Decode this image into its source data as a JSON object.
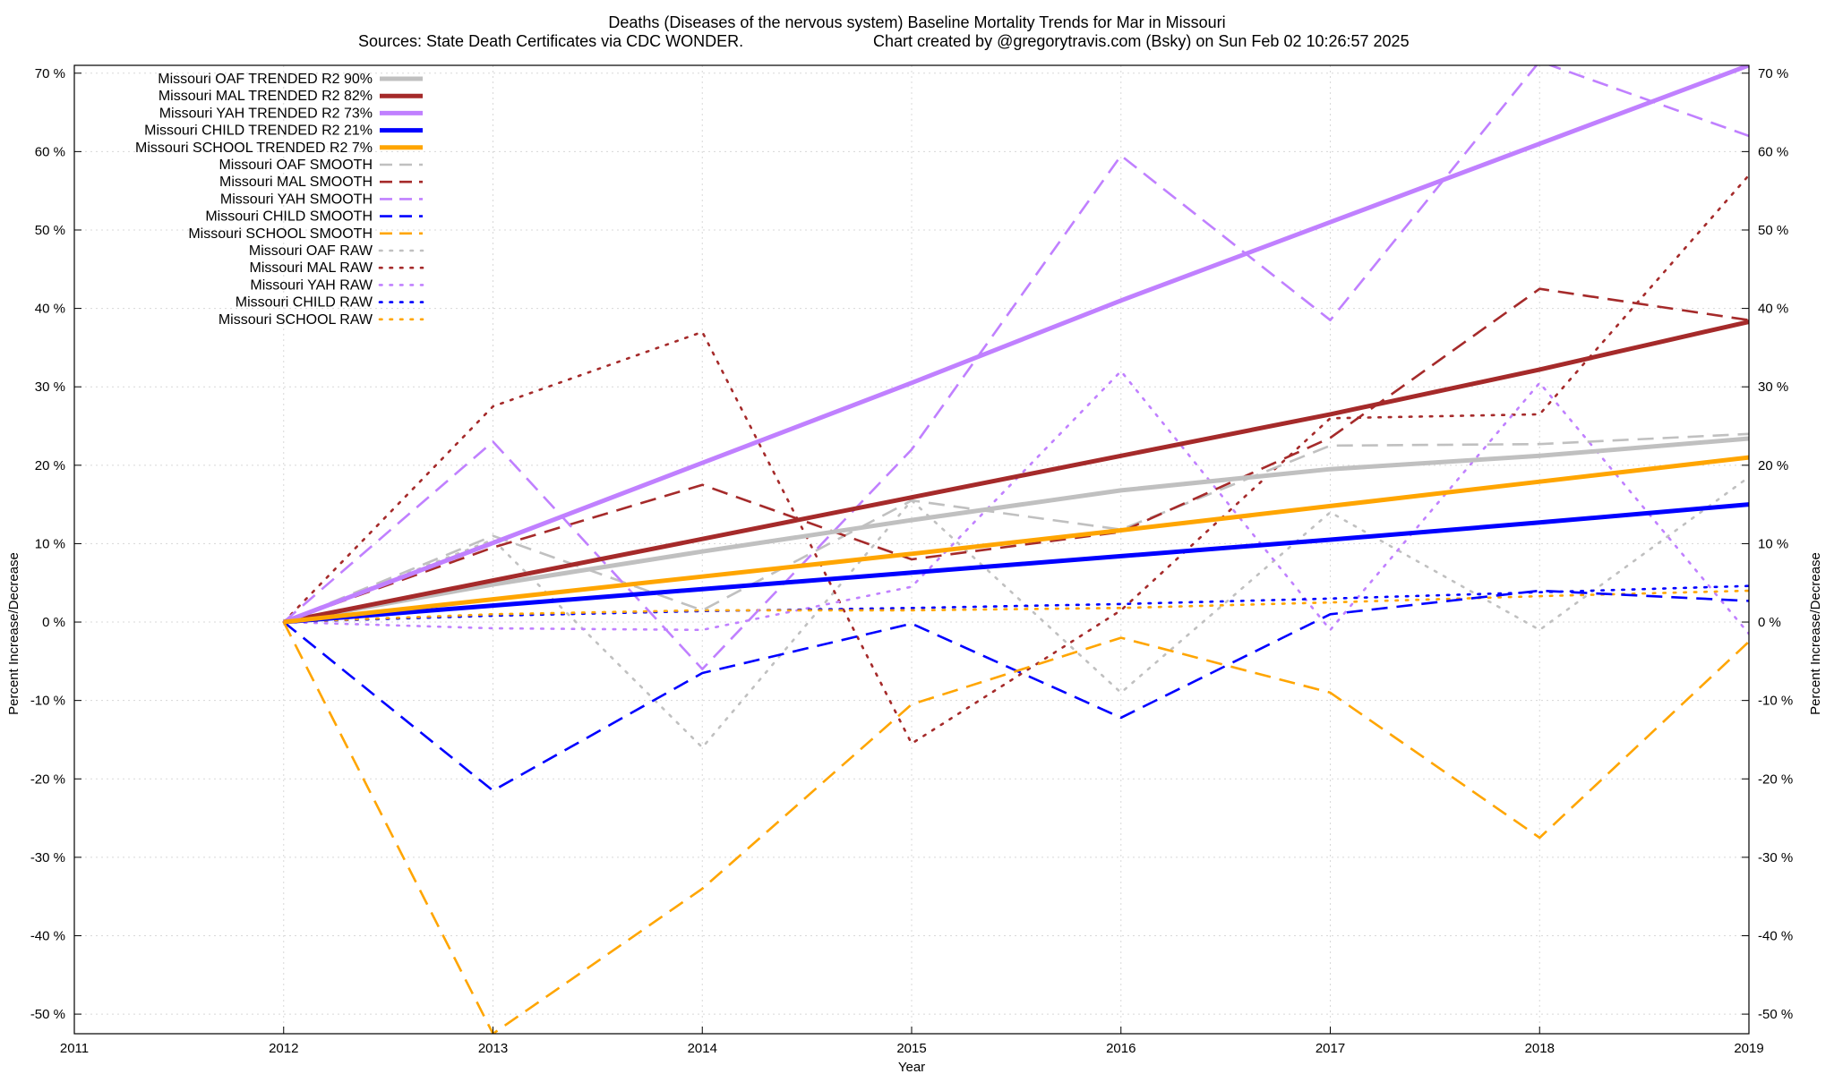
{
  "chart_data": {
    "type": "line",
    "title": "Deaths (Diseases of the nervous system)  Baseline Mortality Trends for Mar in Missouri",
    "subtitle_left": "Sources: State Death Certificates via CDC WONDER.",
    "subtitle_right": "Chart created by @gregorytravis.com (Bsky) on Sun Feb 02 10:26:57 2025",
    "xlabel": "Year",
    "ylabel": "Percent Increase/Decrease",
    "ylabel_right": "Percent Increase/Decrease",
    "xlim": [
      2011,
      2019
    ],
    "ylim": [
      -52.5,
      71
    ],
    "x_ticks": [
      2011,
      2012,
      2013,
      2014,
      2015,
      2016,
      2017,
      2018,
      2019
    ],
    "x_tick_labels": [
      "2011",
      "2012",
      "2013",
      "2014",
      "2015",
      "2016",
      "2017",
      "2018",
      "2019"
    ],
    "y_ticks": [
      -50,
      -40,
      -30,
      -20,
      -10,
      0,
      10,
      20,
      30,
      40,
      50,
      60,
      70
    ],
    "y_tick_labels": [
      "-50 %",
      "-40 %",
      "-30 %",
      "-20 %",
      "-10 %",
      "0 %",
      "10 %",
      "20 %",
      "30 %",
      "40 %",
      "50 %",
      "60 %",
      "70 %"
    ],
    "grid": true,
    "legend_position": "top-left",
    "x": [
      2012,
      2013,
      2014,
      2015,
      2016,
      2017,
      2018,
      2019
    ],
    "series": [
      {
        "name": "Missouri OAF TRENDED R2  90%",
        "style": "trend",
        "color": "#c0c0c0",
        "values": [
          0,
          4.8,
          9.0,
          13.0,
          16.8,
          19.5,
          21.2,
          23.4
        ]
      },
      {
        "name": "Missouri MAL TRENDED R2  82%",
        "style": "trend",
        "color": "#a52a2a",
        "values": [
          0,
          5.3,
          10.6,
          15.9,
          21.2,
          26.5,
          32.2,
          38.3
        ]
      },
      {
        "name": "Missouri YAH TRENDED R2  73%",
        "style": "trend",
        "color": "#c080ff",
        "values": [
          0,
          10.1,
          20.3,
          30.5,
          41.0,
          51.0,
          61.0,
          71.0
        ]
      },
      {
        "name": "Missouri CHILD TRENDED R2  21%",
        "style": "trend",
        "color": "#0000ff",
        "values": [
          0,
          2.1,
          4.2,
          6.3,
          8.4,
          10.5,
          12.7,
          15.0
        ]
      },
      {
        "name": "Missouri SCHOOL TRENDED R2   7%",
        "style": "trend",
        "color": "#ffa500",
        "values": [
          0,
          2.9,
          5.8,
          8.7,
          11.7,
          14.8,
          17.9,
          21.0
        ]
      },
      {
        "name": "Missouri OAF SMOOTH",
        "style": "smooth",
        "color": "#c0c0c0",
        "values": [
          0,
          11.0,
          1.5,
          15.5,
          11.8,
          22.5,
          22.7,
          24.0
        ]
      },
      {
        "name": "Missouri MAL SMOOTH",
        "style": "smooth",
        "color": "#a52a2a",
        "values": [
          0,
          9.5,
          17.5,
          8.0,
          11.5,
          23.5,
          42.5,
          38.5
        ]
      },
      {
        "name": "Missouri YAH SMOOTH",
        "style": "smooth",
        "color": "#c080ff",
        "values": [
          0,
          23.0,
          -6.0,
          22.0,
          59.5,
          38.5,
          71.5,
          62.0
        ]
      },
      {
        "name": "Missouri CHILD SMOOTH",
        "style": "smooth",
        "color": "#0000ff",
        "values": [
          0,
          -21.5,
          -6.5,
          -0.2,
          -12.2,
          1.0,
          4.0,
          2.7
        ]
      },
      {
        "name": "Missouri SCHOOL SMOOTH",
        "style": "smooth",
        "color": "#ffa500",
        "values": [
          0,
          -52.5,
          -34.0,
          -10.5,
          -2.0,
          -9.0,
          -27.5,
          -2.5
        ]
      },
      {
        "name": "Missouri OAF RAW",
        "style": "raw",
        "color": "#c0c0c0",
        "values": [
          0,
          10.5,
          -16.0,
          15.5,
          -9.0,
          14.0,
          -1.0,
          18.5
        ]
      },
      {
        "name": "Missouri MAL RAW",
        "style": "raw",
        "color": "#a52a2a",
        "values": [
          0,
          27.5,
          37.0,
          -15.5,
          1.5,
          26.0,
          26.5,
          57.0
        ]
      },
      {
        "name": "Missouri YAH RAW",
        "style": "raw",
        "color": "#c080ff",
        "values": [
          0,
          -0.8,
          -1.0,
          4.5,
          32.0,
          -1.0,
          30.5,
          -1.5
        ]
      },
      {
        "name": "Missouri CHILD RAW",
        "style": "raw",
        "color": "#0000ff",
        "values": [
          0,
          0.8,
          1.4,
          1.8,
          2.3,
          3.0,
          3.8,
          4.6
        ]
      },
      {
        "name": "Missouri SCHOOL RAW",
        "style": "raw",
        "color": "#ffa500",
        "values": [
          0,
          1.0,
          1.5,
          1.5,
          1.8,
          2.5,
          3.3,
          4.0
        ]
      }
    ]
  }
}
